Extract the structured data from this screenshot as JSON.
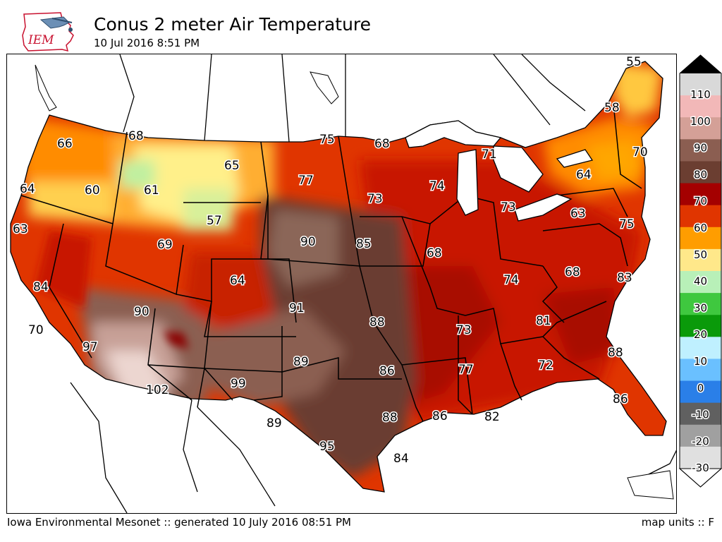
{
  "header": {
    "logo_text": "IEM",
    "title": "Conus 2 meter Air Temperature",
    "subtitle": "10 Jul 2016 8:51 PM"
  },
  "footer": {
    "left": "Iowa Environmental Mesonet :: generated 10 July 2016 08:51 PM",
    "right": "map units :: F"
  },
  "legend": {
    "ticks": [
      "110",
      "100",
      "90",
      "80",
      "70",
      "60",
      "50",
      "40",
      "30",
      "20",
      "10",
      "0",
      "-10",
      "-20",
      "-30"
    ],
    "colors_top_to_bottom": [
      "#d9d9d9",
      "#f2b8b8",
      "#d4a097",
      "#8b5e51",
      "#6b3e31",
      "#a40000",
      "#e03500",
      "#ff9d00",
      "#ffe88a",
      "#b8f0b8",
      "#3fc83f",
      "#0a9a0a",
      "#bff0ff",
      "#6ac0ff",
      "#2a7fe8",
      "#606060",
      "#a0a0a0",
      "#e0e0e0"
    ]
  },
  "map": {
    "stations": [
      {
        "value": "55",
        "region": "maine-north"
      },
      {
        "value": "58",
        "region": "vermont"
      },
      {
        "value": "70",
        "region": "massachusetts"
      },
      {
        "value": "64",
        "region": "new-york"
      },
      {
        "value": "63",
        "region": "pennsylvania"
      },
      {
        "value": "75",
        "region": "maryland"
      },
      {
        "value": "66",
        "region": "washington"
      },
      {
        "value": "68",
        "region": "idaho-north"
      },
      {
        "value": "75",
        "region": "north-dakota"
      },
      {
        "value": "68",
        "region": "minnesota-north"
      },
      {
        "value": "71",
        "region": "michigan"
      },
      {
        "value": "64",
        "region": "oregon-coast"
      },
      {
        "value": "60",
        "region": "oregon"
      },
      {
        "value": "61",
        "region": "idaho"
      },
      {
        "value": "65",
        "region": "montana"
      },
      {
        "value": "77",
        "region": "south-dakota"
      },
      {
        "value": "73",
        "region": "minnesota"
      },
      {
        "value": "74",
        "region": "wisconsin"
      },
      {
        "value": "73",
        "region": "ohio"
      },
      {
        "value": "63",
        "region": "california-north"
      },
      {
        "value": "57",
        "region": "wyoming"
      },
      {
        "value": "69",
        "region": "nevada-north"
      },
      {
        "value": "90",
        "region": "nebraska"
      },
      {
        "value": "85",
        "region": "iowa"
      },
      {
        "value": "68",
        "region": "illinois"
      },
      {
        "value": "74",
        "region": "kentucky"
      },
      {
        "value": "68",
        "region": "virginia"
      },
      {
        "value": "83",
        "region": "virginia-east"
      },
      {
        "value": "84",
        "region": "california"
      },
      {
        "value": "64",
        "region": "colorado"
      },
      {
        "value": "90",
        "region": "utah"
      },
      {
        "value": "91",
        "region": "kansas"
      },
      {
        "value": "88",
        "region": "missouri"
      },
      {
        "value": "73",
        "region": "mississippi"
      },
      {
        "value": "81",
        "region": "georgia-north"
      },
      {
        "value": "70",
        "region": "california-central"
      },
      {
        "value": "97",
        "region": "california-south"
      },
      {
        "value": "89",
        "region": "oklahoma"
      },
      {
        "value": "86",
        "region": "arkansas"
      },
      {
        "value": "77",
        "region": "mississippi-south"
      },
      {
        "value": "72",
        "region": "georgia"
      },
      {
        "value": "88",
        "region": "south-carolina"
      },
      {
        "value": "102",
        "region": "arizona"
      },
      {
        "value": "99",
        "region": "new-mexico"
      },
      {
        "value": "86",
        "region": "florida"
      },
      {
        "value": "89",
        "region": "texas-west"
      },
      {
        "value": "88",
        "region": "texas-east"
      },
      {
        "value": "86",
        "region": "louisiana"
      },
      {
        "value": "82",
        "region": "louisiana-south"
      },
      {
        "value": "95",
        "region": "texas-south"
      },
      {
        "value": "84",
        "region": "texas-coast"
      }
    ]
  }
}
